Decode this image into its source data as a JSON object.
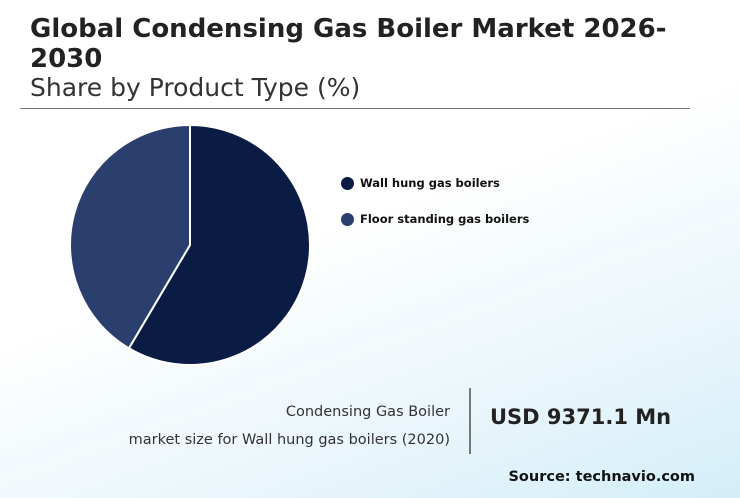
{
  "header": {
    "title": "Global Condensing Gas Boiler Market 2026-2030",
    "subtitle": "Share by Product Type (%)"
  },
  "chart_data": {
    "type": "pie",
    "title": "Global Condensing Gas Boiler Market 2026-2030",
    "subtitle": "Share by Product Type (%)",
    "categories": [
      "Wall hung gas boilers",
      "Floor standing gas boilers"
    ],
    "values": [
      58.5,
      41.5
    ],
    "colors": [
      "#0a1c44",
      "#2b3f6e"
    ],
    "legend_position": "right"
  },
  "stat": {
    "caption_line1": "Condensing Gas Boiler",
    "caption_line2": "market size for Wall hung gas boilers (2020)",
    "value": "USD 9371.1 Mn"
  },
  "footer": {
    "source": "Source: technavio.com"
  }
}
